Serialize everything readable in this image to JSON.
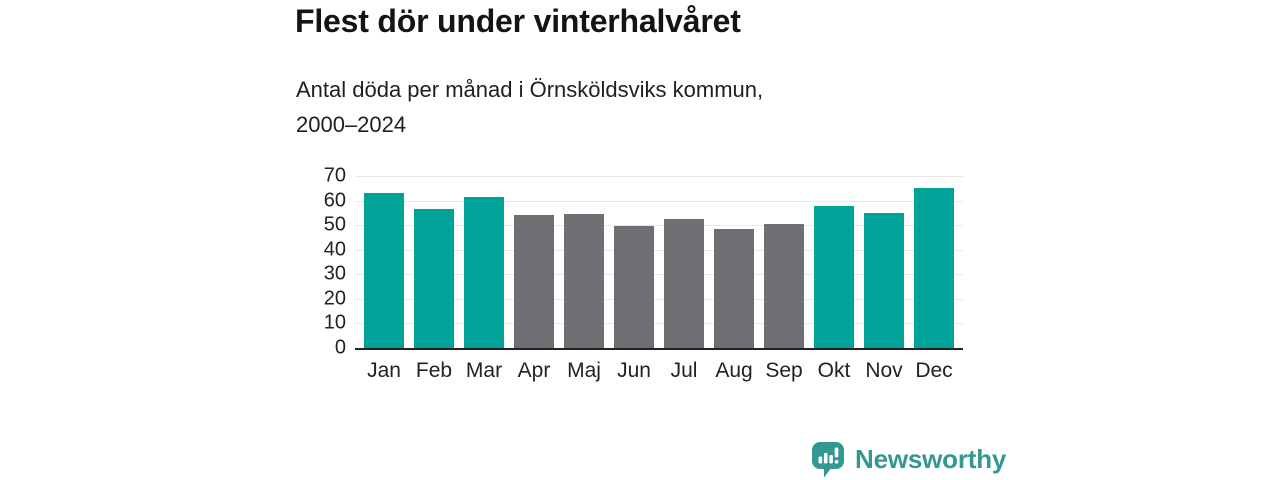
{
  "header": {
    "title": "Flest dör under vinterhalvåret",
    "subtitle_lines": [
      "Antal döda per månad i Örnsköldsviks kommun,",
      "2000–2024"
    ]
  },
  "chart_data": {
    "type": "bar",
    "title": "Flest dör under vinterhalvåret",
    "subtitle": "Antal döda per månad i Örnsköldsviks kommun, 2000–2024",
    "categories": [
      "Jan",
      "Feb",
      "Mar",
      "Apr",
      "Maj",
      "Jun",
      "Jul",
      "Aug",
      "Sep",
      "Okt",
      "Nov",
      "Dec"
    ],
    "values": [
      63,
      56.5,
      61.5,
      54,
      54.5,
      49.5,
      52.5,
      48.5,
      50.5,
      58,
      55,
      65
    ],
    "bar_color_keys": [
      "teal",
      "teal",
      "teal",
      "gray",
      "gray",
      "gray",
      "gray",
      "gray",
      "gray",
      "teal",
      "teal",
      "teal"
    ],
    "colors": {
      "teal": "#00A398",
      "gray": "#6E6E73"
    },
    "highlighted_months": [
      "Jan",
      "Feb",
      "Mar",
      "Okt",
      "Nov",
      "Dec"
    ],
    "xlabel": "",
    "ylabel": "",
    "ylim": [
      0,
      70
    ],
    "yticks": [
      0,
      10,
      20,
      30,
      40,
      50,
      60,
      70
    ],
    "grid": "horizontal",
    "legend": "none",
    "axis_color": "#222222",
    "gridline_color": "#e8e8e8"
  },
  "footer": {
    "brand": "Newsworthy",
    "brand_color": "#339792",
    "logo_icon": "bar-chart-speech-bubble-icon"
  }
}
